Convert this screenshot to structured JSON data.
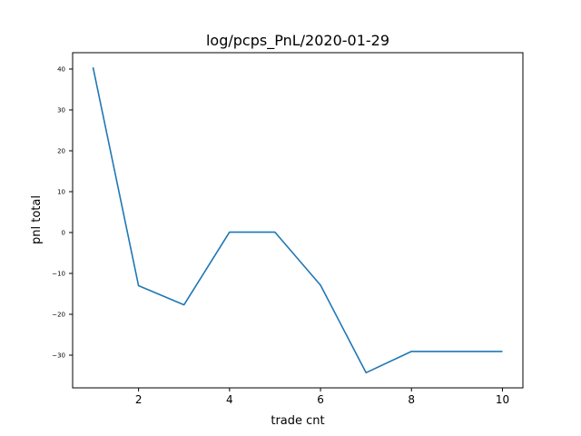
{
  "chart_data": {
    "type": "line",
    "title": "log/pcps_PnL/2020-01-29",
    "xlabel": "trade cnt",
    "ylabel": "pnl total",
    "xlim": [
      0.55,
      10.45
    ],
    "ylim": [
      -38.0,
      44.0
    ],
    "x_ticks": [
      2,
      4,
      6,
      8,
      10
    ],
    "y_ticks": [
      -30,
      -20,
      -10,
      0,
      10,
      20,
      30,
      40
    ],
    "grid": false,
    "series": [
      {
        "color": "#1f77b4",
        "x": [
          1,
          2,
          3,
          4,
          5,
          6,
          7,
          8,
          9,
          10
        ],
        "y": [
          40.4,
          -13.0,
          -17.7,
          0.1,
          0.1,
          -12.9,
          -34.3,
          -29.1,
          -29.1,
          -29.1
        ]
      }
    ]
  }
}
